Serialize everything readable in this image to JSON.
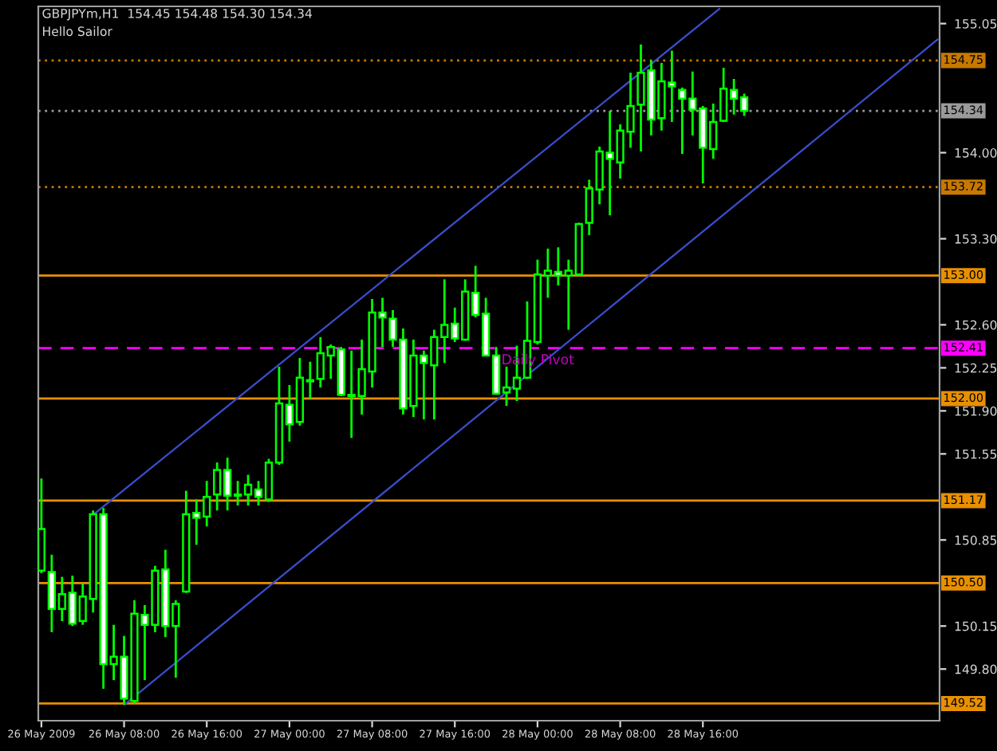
{
  "chart_data": {
    "type": "candlestick",
    "title": "GBPJPYm,H1  154.45 154.48 154.30 154.34",
    "subtitle": "Hello Sailor",
    "xlim": [
      "2009-05-25T23:42",
      "2009-05-29T14:54"
    ],
    "ylim": [
      149.38,
      155.19
    ],
    "xticks": [
      {
        "value": "2009-05-26T00:00",
        "label": "26 May 2009"
      },
      {
        "value": "2009-05-26T08:00",
        "label": "26 May 08:00"
      },
      {
        "value": "2009-05-26T16:00",
        "label": "26 May 16:00"
      },
      {
        "value": "2009-05-27T00:00",
        "label": "27 May 00:00"
      },
      {
        "value": "2009-05-27T08:00",
        "label": "27 May 08:00"
      },
      {
        "value": "2009-05-27T16:00",
        "label": "27 May 16:00"
      },
      {
        "value": "2009-05-28T00:00",
        "label": "28 May 00:00"
      },
      {
        "value": "2009-05-28T08:00",
        "label": "28 May 08:00"
      },
      {
        "value": "2009-05-28T16:00",
        "label": "28 May 16:00"
      }
    ],
    "yticks": [
      {
        "value": 149.8,
        "label": "149.80"
      },
      {
        "value": 150.15,
        "label": "150.15"
      },
      {
        "value": 150.85,
        "label": "150.85"
      },
      {
        "value": 151.55,
        "label": "151.55"
      },
      {
        "value": 151.9,
        "label": "151.90"
      },
      {
        "value": 152.25,
        "label": "152.25"
      },
      {
        "value": 152.6,
        "label": "152.60"
      },
      {
        "value": 153.3,
        "label": "153.30"
      },
      {
        "value": 154.0,
        "label": "154.00"
      },
      {
        "value": 155.05,
        "label": "155.05"
      }
    ],
    "grid": false,
    "series": [
      {
        "type": "candlestick",
        "color": "#00ff00",
        "x": [
          "2009-05-26T00:00",
          "2009-05-26T01:00",
          "2009-05-26T02:00",
          "2009-05-26T03:00",
          "2009-05-26T04:00",
          "2009-05-26T05:00",
          "2009-05-26T06:00",
          "2009-05-26T07:00",
          "2009-05-26T08:00",
          "2009-05-26T09:00",
          "2009-05-26T10:00",
          "2009-05-26T11:00",
          "2009-05-26T12:00",
          "2009-05-26T13:00",
          "2009-05-26T14:00",
          "2009-05-26T15:00",
          "2009-05-26T16:00",
          "2009-05-26T17:00",
          "2009-05-26T18:00",
          "2009-05-26T19:00",
          "2009-05-26T20:00",
          "2009-05-26T21:00",
          "2009-05-26T22:00",
          "2009-05-26T23:00",
          "2009-05-27T00:00",
          "2009-05-27T01:00",
          "2009-05-27T02:00",
          "2009-05-27T03:00",
          "2009-05-27T04:00",
          "2009-05-27T05:00",
          "2009-05-27T06:00",
          "2009-05-27T07:00",
          "2009-05-27T08:00",
          "2009-05-27T09:00",
          "2009-05-27T10:00",
          "2009-05-27T11:00",
          "2009-05-27T12:00",
          "2009-05-27T13:00",
          "2009-05-27T14:00",
          "2009-05-27T15:00",
          "2009-05-27T16:00",
          "2009-05-27T17:00",
          "2009-05-27T18:00",
          "2009-05-27T19:00",
          "2009-05-27T20:00",
          "2009-05-27T21:00",
          "2009-05-27T22:00",
          "2009-05-27T23:00",
          "2009-05-28T00:00",
          "2009-05-28T01:00",
          "2009-05-28T02:00",
          "2009-05-28T03:00",
          "2009-05-28T04:00",
          "2009-05-28T05:00",
          "2009-05-28T06:00",
          "2009-05-28T07:00",
          "2009-05-28T08:00",
          "2009-05-28T09:00",
          "2009-05-28T10:00",
          "2009-05-28T11:00",
          "2009-05-28T12:00",
          "2009-05-28T13:00",
          "2009-05-28T14:00",
          "2009-05-28T15:00",
          "2009-05-28T16:00",
          "2009-05-28T17:00",
          "2009-05-28T18:00",
          "2009-05-28T19:00",
          "2009-05-28T20:00"
        ],
        "ohlc": [
          [
            150.6,
            151.35,
            150.58,
            150.94
          ],
          [
            150.59,
            150.73,
            150.1,
            150.29
          ],
          [
            150.29,
            150.55,
            150.19,
            150.41
          ],
          [
            150.42,
            150.56,
            150.15,
            150.17
          ],
          [
            150.19,
            150.5,
            150.16,
            150.39
          ],
          [
            150.37,
            151.09,
            150.26,
            151.06
          ],
          [
            151.06,
            151.11,
            149.64,
            149.84
          ],
          [
            149.84,
            150.16,
            149.71,
            149.9
          ],
          [
            149.9,
            150.07,
            149.51,
            149.56
          ],
          [
            149.54,
            150.36,
            149.52,
            150.25
          ],
          [
            150.24,
            150.32,
            149.71,
            150.16
          ],
          [
            150.16,
            150.64,
            150.1,
            150.6
          ],
          [
            150.61,
            150.77,
            150.06,
            150.15
          ],
          [
            150.15,
            150.36,
            149.73,
            150.33
          ],
          [
            150.43,
            151.25,
            150.42,
            151.06
          ],
          [
            151.07,
            151.18,
            150.81,
            151.03
          ],
          [
            151.04,
            151.33,
            150.96,
            151.2
          ],
          [
            151.22,
            151.48,
            151.09,
            151.42
          ],
          [
            151.42,
            151.52,
            151.09,
            151.21
          ],
          [
            151.21,
            151.33,
            151.13,
            151.22
          ],
          [
            151.22,
            151.38,
            151.13,
            151.3
          ],
          [
            151.26,
            151.33,
            151.13,
            151.2
          ],
          [
            151.18,
            151.51,
            151.16,
            151.48
          ],
          [
            151.48,
            152.26,
            151.46,
            151.96
          ],
          [
            151.95,
            152.11,
            151.65,
            151.79
          ],
          [
            151.81,
            152.33,
            151.78,
            152.17
          ],
          [
            152.15,
            152.3,
            152.0,
            152.14
          ],
          [
            152.16,
            152.5,
            152.09,
            152.37
          ],
          [
            152.35,
            152.44,
            152.16,
            152.42
          ],
          [
            152.4,
            152.42,
            152.02,
            152.03
          ],
          [
            152.03,
            152.39,
            151.68,
            152.02
          ],
          [
            152.02,
            152.48,
            151.87,
            152.24
          ],
          [
            152.22,
            152.81,
            152.09,
            152.7
          ],
          [
            152.7,
            152.82,
            152.42,
            152.66
          ],
          [
            152.65,
            152.72,
            152.42,
            152.48
          ],
          [
            152.48,
            152.57,
            151.87,
            151.92
          ],
          [
            151.94,
            152.48,
            151.85,
            152.35
          ],
          [
            152.35,
            152.39,
            151.83,
            152.29
          ],
          [
            152.27,
            152.56,
            151.83,
            152.5
          ],
          [
            152.5,
            152.97,
            152.29,
            152.6
          ],
          [
            152.61,
            152.74,
            152.46,
            152.49
          ],
          [
            152.48,
            152.97,
            152.47,
            152.87
          ],
          [
            152.86,
            153.08,
            152.66,
            152.68
          ],
          [
            152.69,
            152.82,
            152.35,
            152.35
          ],
          [
            152.35,
            152.42,
            152.03,
            152.04
          ],
          [
            152.05,
            152.26,
            151.94,
            152.09
          ],
          [
            152.08,
            152.43,
            151.98,
            152.17
          ],
          [
            152.17,
            152.79,
            152.16,
            152.47
          ],
          [
            152.46,
            153.13,
            152.44,
            153.01
          ],
          [
            153.0,
            153.22,
            152.82,
            153.04
          ],
          [
            153.03,
            153.23,
            152.92,
            153.0
          ],
          [
            153.0,
            153.13,
            152.56,
            153.04
          ],
          [
            153.01,
            153.43,
            153.0,
            153.42
          ],
          [
            153.43,
            153.78,
            153.33,
            153.71
          ],
          [
            153.7,
            154.05,
            153.58,
            154.01
          ],
          [
            154.0,
            154.34,
            153.49,
            153.95
          ],
          [
            153.92,
            154.23,
            153.79,
            154.18
          ],
          [
            154.17,
            154.65,
            154.04,
            154.38
          ],
          [
            154.39,
            154.88,
            154.01,
            154.65
          ],
          [
            154.67,
            154.75,
            154.14,
            154.27
          ],
          [
            154.28,
            154.73,
            154.18,
            154.58
          ],
          [
            154.57,
            154.83,
            154.25,
            154.54
          ],
          [
            154.51,
            154.53,
            153.99,
            154.44
          ],
          [
            154.44,
            154.66,
            154.14,
            154.35
          ],
          [
            154.36,
            154.38,
            153.75,
            154.04
          ],
          [
            154.03,
            154.4,
            153.95,
            154.25
          ],
          [
            154.26,
            154.69,
            154.25,
            154.52
          ],
          [
            154.51,
            154.6,
            154.31,
            154.44
          ],
          [
            154.45,
            154.48,
            154.3,
            154.34
          ]
        ]
      },
      {
        "type": "line",
        "color": "#3a4fd0",
        "x": [
          "2009-05-26T05:05",
          "2009-05-28T17:36"
        ],
        "values": [
          151.06,
          155.17
        ]
      },
      {
        "type": "line",
        "color": "#3a4fd0",
        "x": [
          "2009-05-26T08:02",
          "2009-05-29T14:42"
        ],
        "values": [
          149.51,
          154.92
        ]
      }
    ],
    "ref_lines": [
      {
        "axis": "y",
        "value": 154.75,
        "label": "154.75",
        "color": "#c87800",
        "line_style": "dotted"
      },
      {
        "axis": "y",
        "value": 154.34,
        "label": "154.34",
        "color": "#9a9a9a",
        "line_style": "dotted"
      },
      {
        "axis": "y",
        "value": 153.72,
        "label": "153.72",
        "color": "#c87800",
        "line_style": "dotted"
      },
      {
        "axis": "y",
        "value": 153.0,
        "label": "153.00",
        "color": "#e89000",
        "line_style": "solid"
      },
      {
        "axis": "y",
        "value": 152.41,
        "label": "152.41",
        "color": "#ff00ff",
        "line_style": "dashed"
      },
      {
        "axis": "y",
        "value": 152.0,
        "label": "152.00",
        "color": "#e89000",
        "line_style": "solid"
      },
      {
        "axis": "y",
        "value": 151.17,
        "label": "151.17",
        "color": "#e89000",
        "line_style": "solid"
      },
      {
        "axis": "y",
        "value": 150.5,
        "label": "150.50",
        "color": "#e89000",
        "line_style": "solid"
      },
      {
        "axis": "y",
        "value": 149.52,
        "label": "149.52",
        "color": "#e89000",
        "line_style": "solid"
      }
    ],
    "annotations": [
      {
        "text": "Daily Pivot",
        "x": "2009-05-27T20:30",
        "y": 152.31
      }
    ]
  }
}
